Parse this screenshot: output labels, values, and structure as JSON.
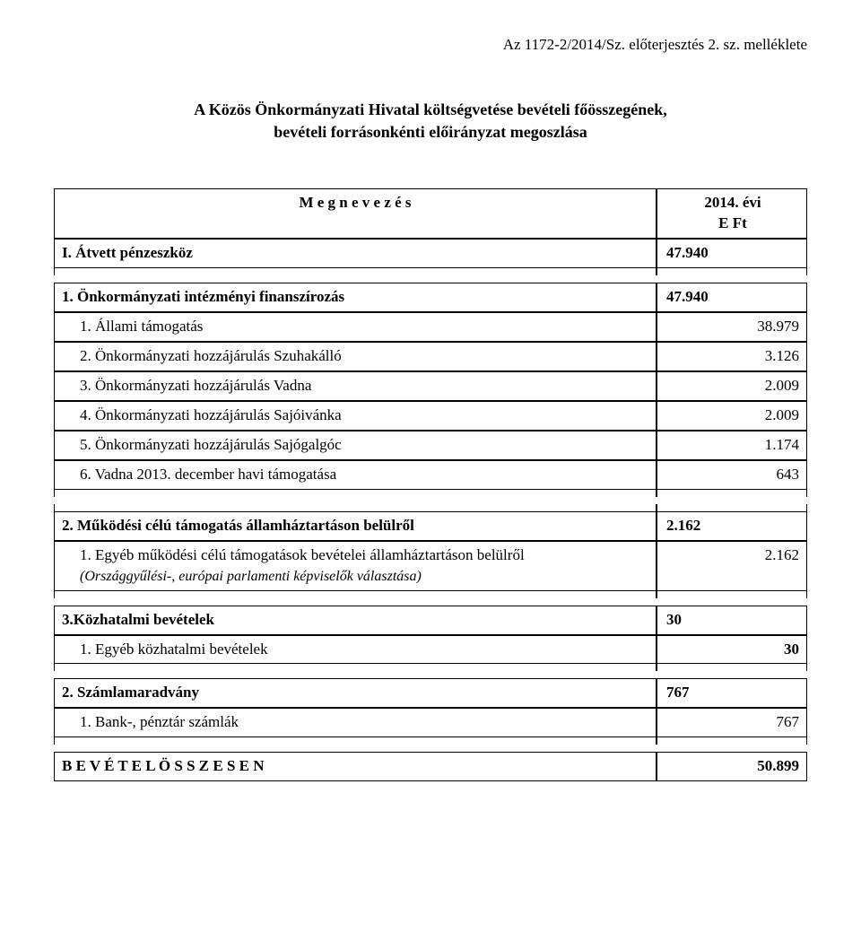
{
  "header_ref": "Az 1172-2/2014/Sz. előterjesztés 2. sz. melléklete",
  "title_line1": "A Közös Önkormányzati Hivatal költségvetése bevételi főösszegének,",
  "title_line2": "bevételi forrásonkénti előirányzat megoszlása",
  "col_name": "M e g n e v e z é s",
  "col_year": "2014. évi",
  "col_unit": "E Ft",
  "section1": {
    "label": "I. Átvett pénzeszköz",
    "value": "47.940"
  },
  "group1": {
    "label": "1. Önkormányzati intézményi finanszírozás",
    "value": "47.940",
    "rows": [
      {
        "label": "1.   Állami támogatás",
        "value": "38.979"
      },
      {
        "label": "2.   Önkormányzati hozzájárulás Szuhakálló",
        "value": "3.126"
      },
      {
        "label": "3.   Önkormányzati hozzájárulás Vadna",
        "value": "2.009"
      },
      {
        "label": "4.   Önkormányzati hozzájárulás Sajóivánka",
        "value": "2.009"
      },
      {
        "label": "5.   Önkormányzati hozzájárulás Sajógalgóc",
        "value": "1.174"
      },
      {
        "label": "6.   Vadna 2013. december havi támogatása",
        "value": "643"
      }
    ]
  },
  "group2": {
    "label": "2. Működési célú támogatás államháztartáson belülről",
    "value": "2.162",
    "row_label": "1.   Egyéb működési célú támogatások bevételei államháztartáson belülről",
    "row_sub": "(Országgyűlési-, európai parlamenti képviselők választása)",
    "row_value": "2.162"
  },
  "group3": {
    "label": "3.Közhatalmi bevételek",
    "value": "30",
    "row_label": "1.   Egyéb közhatalmi bevételek",
    "row_value": "30"
  },
  "group4": {
    "label": "2. Számlamaradvány",
    "value": "767",
    "row_label": "1.   Bank-, pénztár számlák",
    "row_value": "767"
  },
  "total": {
    "label": "B E V É T E L   Ö S S Z E S E N",
    "value": "50.899"
  }
}
